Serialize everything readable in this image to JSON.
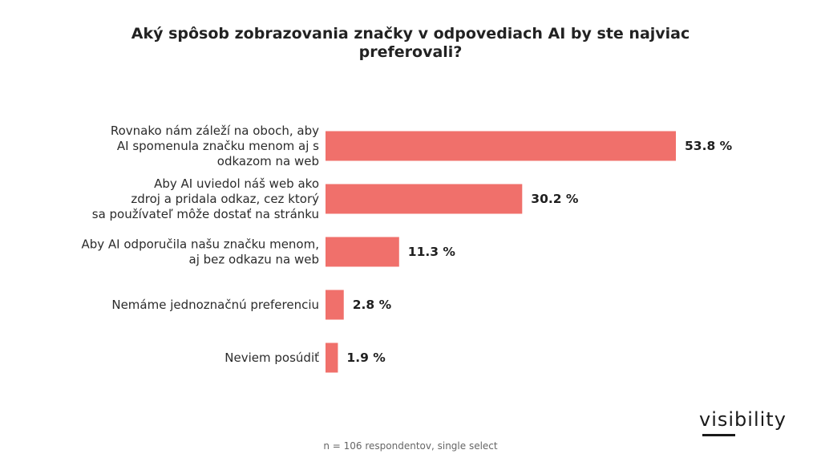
{
  "chart_data": {
    "type": "bar",
    "orientation": "horizontal",
    "title": "Aký spôsob zobrazovania značky v odpovediach AI by ste najviac preferovali?",
    "categories": [
      "Rovnako nám záleží na oboch, aby AI spomenula značku menom aj s odkazom na web",
      "Aby AI uviedol náš web ako zdroj a pridala odkaz, cez ktorý sa používateľ môže dostať na stránku",
      "Aby AI odporučila našu značku menom, aj bez odkazu na web",
      "Nemáme jednoznačnú preferenciu",
      "Neviem posúdiť"
    ],
    "category_lines": [
      [
        "Rovnako nám záleží na oboch, aby",
        "AI spomenula značku menom aj s",
        "odkazom na web"
      ],
      [
        "Aby AI uviedol náš web ako",
        "zdroj a pridala odkaz, cez ktorý",
        "sa používateľ môže dostať na stránku"
      ],
      [
        "Aby AI odporučila našu značku menom,",
        "aj bez odkazu na web"
      ],
      [
        "Nemáme jednoznačnú preferenciu"
      ],
      [
        "Neviem posúdiť"
      ]
    ],
    "values": [
      53.8,
      30.2,
      11.3,
      2.8,
      1.9
    ],
    "value_labels": [
      "53.8 %",
      "30.2 %",
      "11.3 %",
      "2.8 %",
      "1.9 %"
    ],
    "bar_color": "#f0706b",
    "grid": false,
    "legend": "none"
  },
  "brand": {
    "logo_text": "visibility"
  },
  "footnote": "n = 106 respondentov, single select"
}
